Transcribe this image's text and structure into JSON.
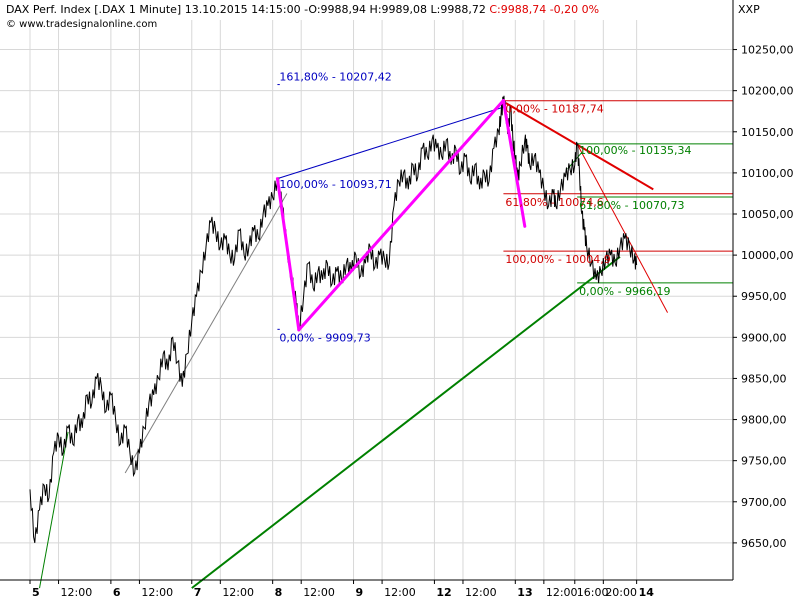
{
  "header": {
    "instrument": "DAX Perf. Index [.DAX  1 Minute]",
    "datetime": "13.10.2015 14:15:00",
    "open": "O:9988,94",
    "high": "H:9989,08",
    "low": "L:9988,72",
    "close_change": "C:9988,74 -0,20 0%",
    "copyright": "© www.tradesignalonline.com",
    "symbol": "XXP"
  },
  "colors": {
    "price": "#000000",
    "grid": "#d8d8d8",
    "pattern": "#ff00ff",
    "fib_blue": "#0000c0",
    "fib_red": "#d00000",
    "fib_green": "#008000",
    "trend_gray": "#808080",
    "trend_green": "#008000",
    "trend_red": "#e00000",
    "axis_text": "#000000"
  },
  "chart_data": {
    "type": "line",
    "title": "DAX Perf. Index [.DAX  1 Minute]",
    "xlabel": "",
    "ylabel": "",
    "ylim": [
      9600,
      10275
    ],
    "grid": true,
    "y_ticks": [
      "10250,00",
      "10200,00",
      "10150,00",
      "10100,00",
      "10050,00",
      "10000,00",
      "9950,00",
      "9900,00",
      "9850,00",
      "9800,00",
      "9750,00",
      "9700,00",
      "9650,00"
    ],
    "y_tick_values": [
      10250,
      10200,
      10150,
      10100,
      10050,
      10000,
      9950,
      9900,
      9850,
      9800,
      9750,
      9700,
      9650
    ],
    "x_ticks": [
      "5",
      "12:00",
      "6",
      "12:00",
      "7",
      "12:00",
      "8",
      "12:00",
      "9",
      "12:00",
      "12",
      "12:00",
      "13",
      "12:00",
      "16:00",
      "20:00",
      "14"
    ],
    "x_tick_bold": [
      true,
      false,
      true,
      false,
      true,
      false,
      true,
      false,
      true,
      false,
      true,
      false,
      true,
      false,
      false,
      false,
      true
    ],
    "series": [
      {
        "values": [
          [
            0,
            9715
          ],
          [
            2,
            9650
          ],
          [
            4,
            9690
          ],
          [
            6,
            9720
          ],
          [
            8,
            9705
          ],
          [
            10,
            9760
          ],
          [
            12,
            9780
          ],
          [
            14,
            9760
          ],
          [
            16,
            9790
          ],
          [
            18,
            9770
          ],
          [
            20,
            9800
          ],
          [
            22,
            9790
          ],
          [
            24,
            9830
          ],
          [
            26,
            9820
          ],
          [
            28,
            9850
          ],
          [
            30,
            9840
          ],
          [
            32,
            9810
          ],
          [
            34,
            9830
          ],
          [
            36,
            9800
          ],
          [
            38,
            9770
          ],
          [
            40,
            9790
          ],
          [
            42,
            9760
          ],
          [
            44,
            9735
          ],
          [
            46,
            9760
          ],
          [
            48,
            9790
          ],
          [
            50,
            9820
          ],
          [
            52,
            9830
          ],
          [
            54,
            9850
          ],
          [
            56,
            9880
          ],
          [
            58,
            9860
          ],
          [
            60,
            9900
          ],
          [
            62,
            9870
          ],
          [
            64,
            9840
          ],
          [
            66,
            9880
          ],
          [
            68,
            9920
          ],
          [
            70,
            9950
          ],
          [
            72,
            9980
          ],
          [
            74,
            10010
          ],
          [
            76,
            10040
          ],
          [
            78,
            10030
          ],
          [
            80,
            10010
          ],
          [
            82,
            10020
          ],
          [
            84,
            10000
          ],
          [
            86,
            9995
          ],
          [
            88,
            10030
          ],
          [
            90,
            10000
          ],
          [
            92,
            10010
          ],
          [
            94,
            10030
          ],
          [
            96,
            10020
          ],
          [
            98,
            10050
          ],
          [
            100,
            10060
          ],
          [
            102,
            10070
          ],
          [
            104,
            10093
          ],
          [
            106,
            10060
          ],
          [
            108,
            10010
          ],
          [
            110,
            9970
          ],
          [
            112,
            9940
          ],
          [
            113,
            9910
          ],
          [
            115,
            9950
          ],
          [
            117,
            9990
          ],
          [
            119,
            9960
          ],
          [
            121,
            9980
          ],
          [
            123,
            9970
          ],
          [
            125,
            9990
          ],
          [
            127,
            9965
          ],
          [
            129,
            9980
          ],
          [
            131,
            9970
          ],
          [
            133,
            9990
          ],
          [
            135,
            9980
          ],
          [
            137,
            10000
          ],
          [
            139,
            9975
          ],
          [
            141,
            9990
          ],
          [
            143,
            10010
          ],
          [
            145,
            9985
          ],
          [
            147,
            10000
          ],
          [
            149,
            9995
          ],
          [
            151,
            9990
          ],
          [
            153,
            10060
          ],
          [
            155,
            10090
          ],
          [
            157,
            10100
          ],
          [
            159,
            10080
          ],
          [
            161,
            10110
          ],
          [
            163,
            10095
          ],
          [
            165,
            10130
          ],
          [
            167,
            10120
          ],
          [
            169,
            10140
          ],
          [
            171,
            10130
          ],
          [
            173,
            10120
          ],
          [
            175,
            10140
          ],
          [
            177,
            10110
          ],
          [
            179,
            10130
          ],
          [
            181,
            10100
          ],
          [
            183,
            10120
          ],
          [
            185,
            10090
          ],
          [
            187,
            10110
          ],
          [
            189,
            10080
          ],
          [
            191,
            10100
          ],
          [
            193,
            10090
          ],
          [
            195,
            10130
          ],
          [
            197,
            10150
          ],
          [
            198,
            10170
          ],
          [
            199,
            10188
          ],
          [
            200,
            10175
          ],
          [
            201,
            10150
          ],
          [
            202,
            10180
          ],
          [
            203,
            10140
          ],
          [
            204,
            10120
          ],
          [
            205,
            10090
          ],
          [
            206,
            10110
          ],
          [
            208,
            10140
          ],
          [
            209,
            10130
          ],
          [
            210,
            10110
          ],
          [
            212,
            10120
          ],
          [
            214,
            10100
          ],
          [
            216,
            10080
          ],
          [
            218,
            10060
          ],
          [
            220,
            10075
          ],
          [
            221,
            10060
          ],
          [
            223,
            10080
          ],
          [
            225,
            10095
          ],
          [
            227,
            10105
          ],
          [
            229,
            10110
          ],
          [
            230,
            10135
          ],
          [
            231,
            10100
          ],
          [
            232,
            10050
          ],
          [
            233,
            10030
          ],
          [
            234,
            10010
          ],
          [
            236,
            9990
          ],
          [
            238,
            9970
          ],
          [
            240,
            9980
          ],
          [
            242,
            9995
          ],
          [
            244,
            10000
          ],
          [
            246,
            9990
          ],
          [
            248,
            10010
          ],
          [
            250,
            10020
          ],
          [
            252,
            10010
          ],
          [
            254,
            9995
          ],
          [
            255,
            9988
          ]
        ]
      }
    ],
    "x_range": [
      0,
      285
    ],
    "x_tick_positions": [
      0,
      12,
      34,
      46,
      68,
      80,
      102,
      114,
      136,
      148,
      170,
      182,
      204,
      216,
      229,
      241,
      255
    ],
    "fibonacci": [
      {
        "label": "161,80% - 10207,42",
        "level": 10207.42,
        "color": "fib_blue"
      },
      {
        "label": "100,00% - 10093,71",
        "level": 10093.71,
        "color": "fib_blue"
      },
      {
        "label": "0,00% - 9909,73",
        "level": 9909.73,
        "color": "fib_blue"
      },
      {
        "label": "0,00% - 10187,74",
        "level": 10187.74,
        "color": "fib_red"
      },
      {
        "label": "61,80% - 10074,6",
        "level": 10074.6,
        "color": "fib_red"
      },
      {
        "label": "100,00% - 10004,9",
        "level": 10004.9,
        "color": "fib_red"
      },
      {
        "label": "100,00% - 10135,34",
        "level": 10135.34,
        "color": "fib_green"
      },
      {
        "label": "61,80% - 10070,73",
        "level": 10070.73,
        "color": "fib_green"
      },
      {
        "label": "0,00% - 9966,19",
        "level": 9966.19,
        "color": "fib_green"
      }
    ],
    "pattern_lines": [
      [
        [
          104,
          10093
        ],
        [
          113,
          9909
        ]
      ],
      [
        [
          113,
          9909
        ],
        [
          199,
          10188
        ]
      ],
      [
        [
          199,
          10188
        ],
        [
          208,
          10035
        ]
      ]
    ],
    "trend_lines": [
      {
        "color": "trend_gray",
        "from": [
          40,
          9735
        ],
        "to": [
          108,
          10075
        ]
      },
      {
        "color": "trend_green",
        "from": [
          4,
          9595
        ],
        "to": [
          16,
          9785
        ]
      },
      {
        "color": "trend_green",
        "from": [
          68,
          9595
        ],
        "to": [
          248,
          9998
        ]
      },
      {
        "color": "fib_blue",
        "from": [
          104,
          10093
        ],
        "to": [
          199,
          10180
        ]
      },
      {
        "color": "trend_red",
        "from": [
          200,
          10185
        ],
        "to": [
          262,
          10080
        ]
      },
      {
        "color": "trend_red",
        "from": [
          230,
          10135
        ],
        "to": [
          268,
          9930
        ]
      },
      {
        "color": "trend_green",
        "from": [
          226,
          10105
        ],
        "to": [
          232,
          10125
        ]
      }
    ]
  }
}
